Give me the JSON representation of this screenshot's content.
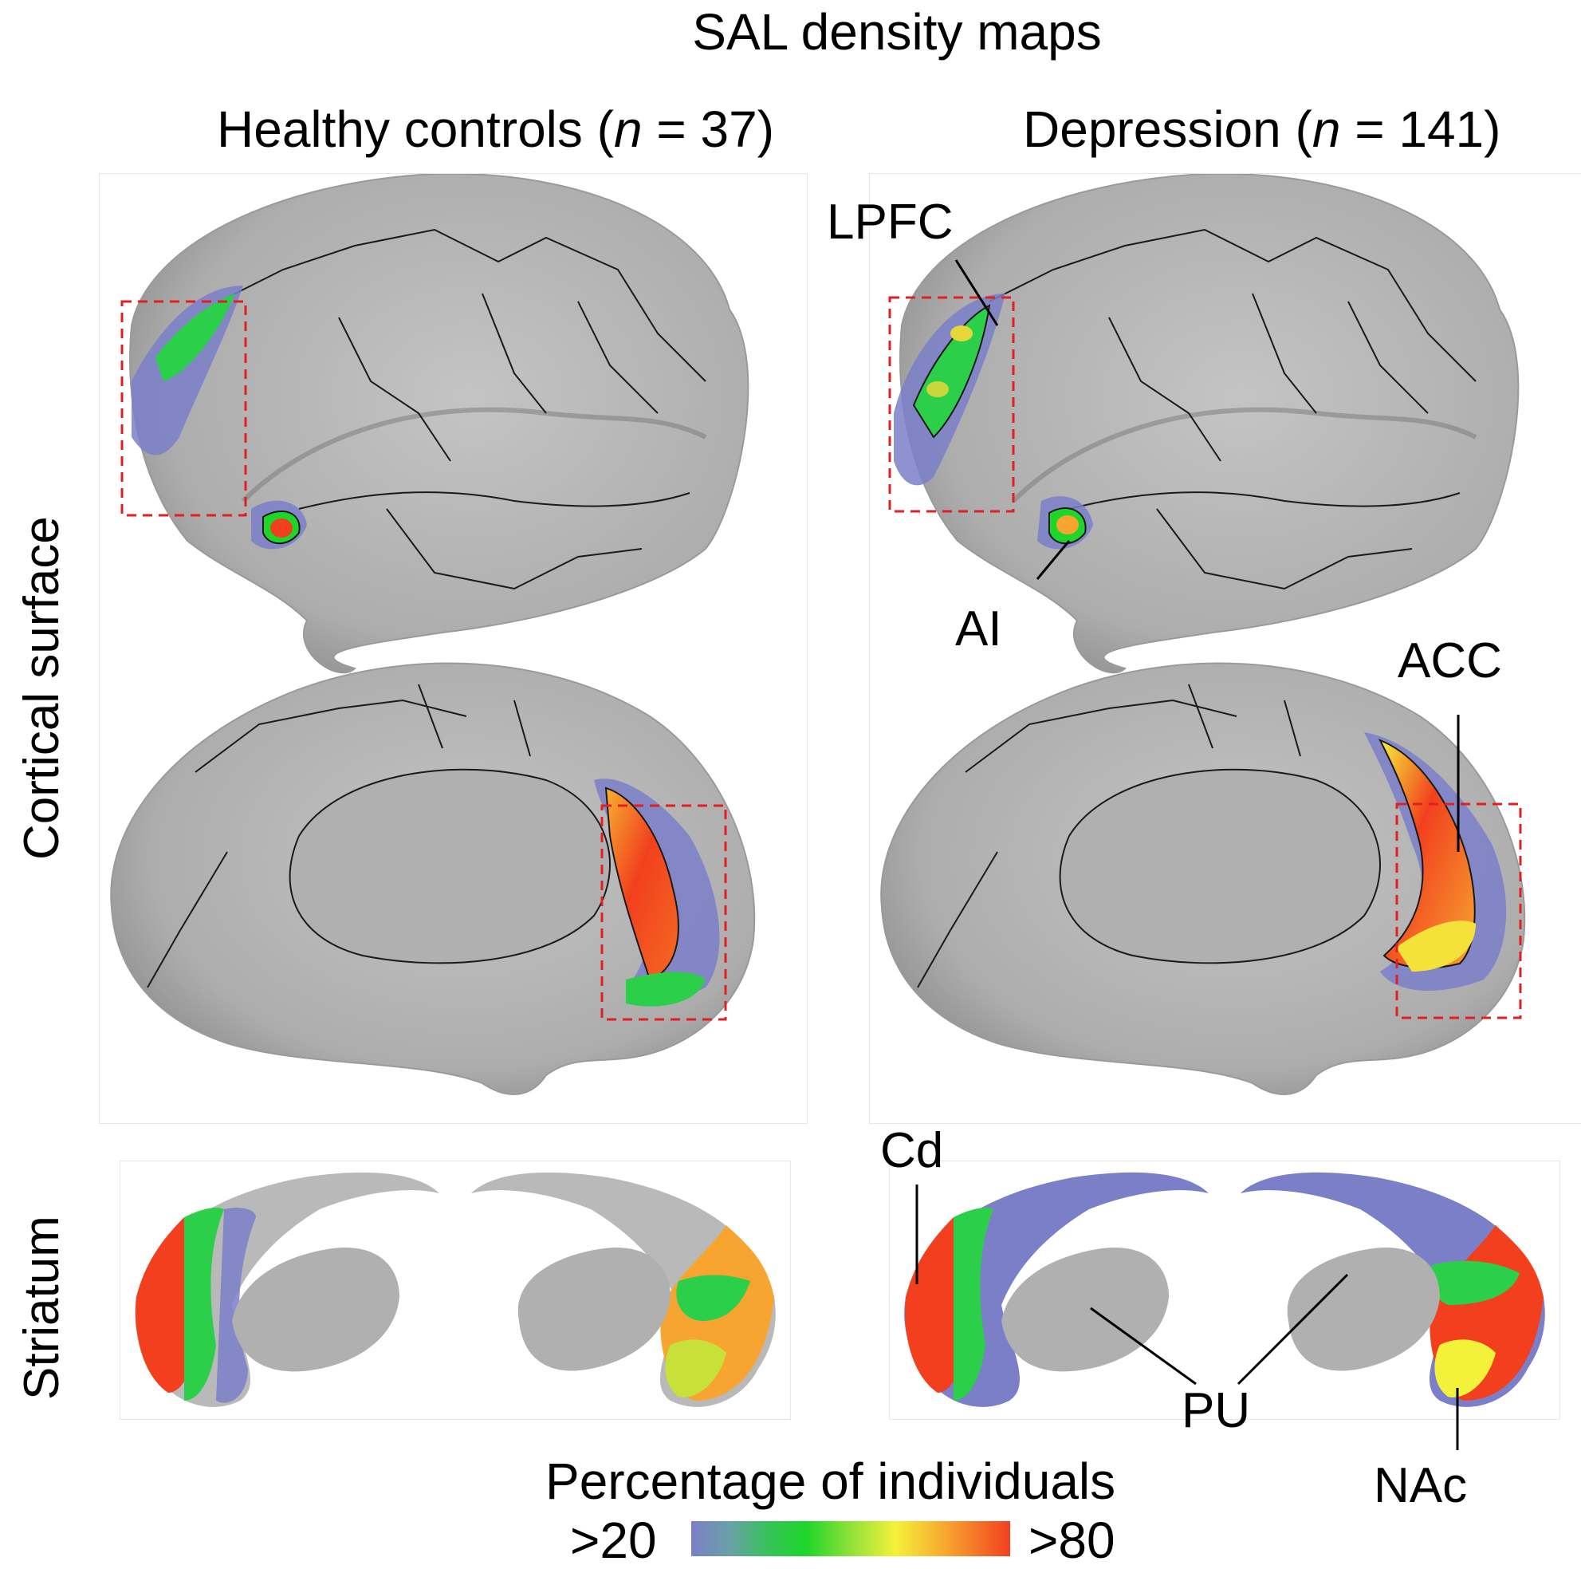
{
  "figure": {
    "title": "SAL density maps",
    "columns": [
      {
        "prefix": "Healthy controls (",
        "n_label": "n",
        "suffix": " = 37)"
      },
      {
        "prefix": "Depression (",
        "n_label": "n",
        "suffix": " = 141)"
      }
    ],
    "rows": {
      "cortical": "Cortical surface",
      "striatum": "Striatum"
    },
    "annotations": {
      "lpfc": "LPFC",
      "ai": "AI",
      "acc": "ACC",
      "cd": "Cd",
      "pu": "PU",
      "nac": "NAc"
    },
    "legend": {
      "title": "Percentage of individuals",
      "min_label": ">20",
      "max_label": ">80",
      "colors": [
        "#7b7fc8",
        "#36c25a",
        "#1ed62a",
        "#f4f13a",
        "#f7a530",
        "#f2401e"
      ]
    },
    "colors": {
      "brain": "#b9b9b9",
      "brain_shade": "#8f8f8f",
      "outline": "#1a1a1a",
      "roi_box": "#e02020"
    }
  }
}
